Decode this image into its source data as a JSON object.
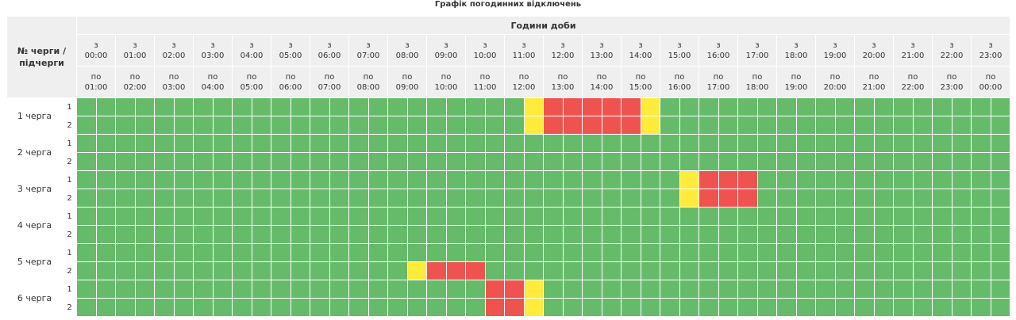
{
  "title": "Графік погодинних відключень",
  "header": {
    "corner": "№ черги / підчерги",
    "hours_title": "Години доби",
    "from_prefix": "з",
    "to_prefix": "по",
    "from_times": [
      "00:00",
      "01:00",
      "02:00",
      "03:00",
      "04:00",
      "05:00",
      "06:00",
      "07:00",
      "08:00",
      "09:00",
      "10:00",
      "11:00",
      "12:00",
      "13:00",
      "14:00",
      "15:00",
      "16:00",
      "17:00",
      "18:00",
      "19:00",
      "20:00",
      "21:00",
      "22:00",
      "23:00"
    ],
    "to_times": [
      "01:00",
      "02:00",
      "03:00",
      "04:00",
      "05:00",
      "06:00",
      "07:00",
      "08:00",
      "09:00",
      "10:00",
      "11:00",
      "12:00",
      "13:00",
      "14:00",
      "15:00",
      "16:00",
      "17:00",
      "18:00",
      "19:00",
      "20:00",
      "21:00",
      "22:00",
      "23:00",
      "00:00"
    ]
  },
  "colors": {
    "power_on": "#66bb6a",
    "power_off": "#ef5350",
    "possible_off": "#ffeb3b"
  },
  "legend_note": "cells are half-hour slots: g = power on, r = outage, y = possible outage",
  "queues": [
    {
      "label": "1 черга",
      "subs": [
        {
          "sub": "1",
          "slots": "gggggggggggggggggggggggyrrrrrygggggggggggggggggg"
        },
        {
          "sub": "2",
          "slots": "gggggggggggggggggggggggyrrrrrygggggggggggggggggg"
        }
      ]
    },
    {
      "label": "2 черга",
      "subs": [
        {
          "sub": "1",
          "slots": "gggggggggggggggggggggggggggggggggggggggggggggggg"
        },
        {
          "sub": "2",
          "slots": "gggggggggggggggggggggggggggggggggggggggggggggggg"
        }
      ]
    },
    {
      "label": "3 черга",
      "subs": [
        {
          "sub": "1",
          "slots": "gggggggggggggggggggggggggggggggyrrrggggggggggggg"
        },
        {
          "sub": "2",
          "slots": "gggggggggggggggggggggggggggggggyrrrggggggggggggg"
        }
      ]
    },
    {
      "label": "4 черга",
      "subs": [
        {
          "sub": "1",
          "slots": "gggggggggggggggggggggggggggggggggggggggggggggggg"
        },
        {
          "sub": "2",
          "slots": "gggggggggggggggggggggggggggggggggggggggggggggggg"
        }
      ]
    },
    {
      "label": "5 черга",
      "subs": [
        {
          "sub": "1",
          "slots": "gggggggggggggggggggggggggggggggggggggggggggggggg"
        },
        {
          "sub": "2",
          "slots": "gggggggggggggggggyrrrggggggggggggggggggggggggggg"
        }
      ]
    },
    {
      "label": "6 черга",
      "subs": [
        {
          "sub": "1",
          "slots": "gggggggggggggggggggggrrygggggggggggggggggggggggg"
        },
        {
          "sub": "2",
          "slots": "gggggggggggggggggggggrrygggggggggggggggggggggggg"
        }
      ]
    }
  ]
}
